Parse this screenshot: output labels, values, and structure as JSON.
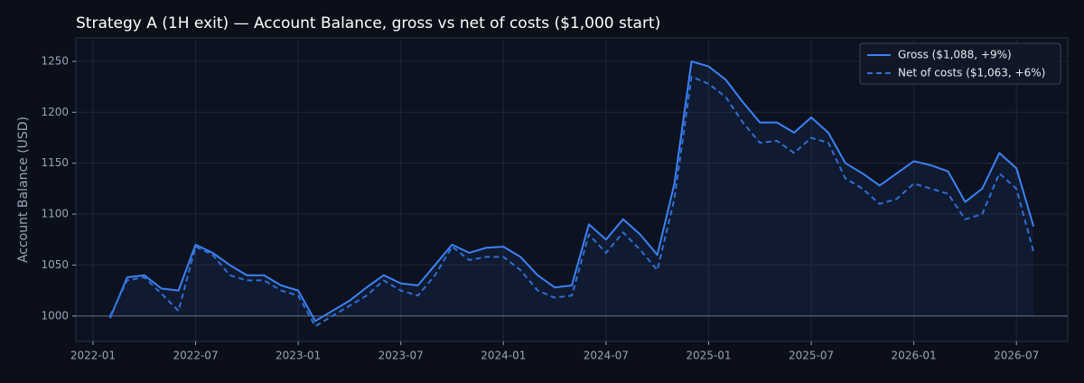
{
  "chart_data": {
    "type": "line",
    "title": "Strategy A (1H exit) — Account Balance, gross vs net of costs ($1,000 start)",
    "y_label": "Account Balance (USD)",
    "x": [
      "2022-02",
      "2022-03",
      "2022-04",
      "2022-05",
      "2022-06",
      "2022-07",
      "2022-08",
      "2022-09",
      "2022-10",
      "2022-11",
      "2022-12",
      "2023-01",
      "2023-02",
      "2023-03",
      "2023-04",
      "2023-05",
      "2023-06",
      "2023-07",
      "2023-08",
      "2023-09",
      "2023-10",
      "2023-11",
      "2023-12",
      "2024-01",
      "2024-02",
      "2024-03",
      "2024-04",
      "2024-05",
      "2024-06",
      "2024-07",
      "2024-08",
      "2024-09",
      "2024-10",
      "2024-11",
      "2024-12",
      "2025-01",
      "2025-02",
      "2025-03",
      "2025-04",
      "2025-05",
      "2025-06",
      "2025-07",
      "2025-08",
      "2025-09",
      "2025-10",
      "2025-11",
      "2025-12",
      "2026-01",
      "2026-02",
      "2026-03",
      "2026-04",
      "2026-05",
      "2026-06",
      "2026-07",
      "2026-08"
    ],
    "series": [
      {
        "name": "Gross ($1,088, +9%)",
        "color": "#3b82f6",
        "dashed": false,
        "values": [
          998,
          1038,
          1040,
          1027,
          1025,
          1070,
          1062,
          1050,
          1040,
          1040,
          1030,
          1025,
          995,
          1005,
          1015,
          1028,
          1040,
          1032,
          1030,
          1050,
          1070,
          1062,
          1067,
          1068,
          1058,
          1040,
          1028,
          1030,
          1090,
          1075,
          1095,
          1080,
          1060,
          1130,
          1250,
          1245,
          1232,
          1210,
          1190,
          1190,
          1180,
          1195,
          1180,
          1150,
          1140,
          1128,
          1140,
          1152,
          1148,
          1142,
          1112,
          1125,
          1160,
          1145,
          1088
        ]
      },
      {
        "name": "Net of costs ($1,063, +6%)",
        "color": "#2f6fd6",
        "dashed": true,
        "values": [
          1000,
          1035,
          1038,
          1022,
          1005,
          1068,
          1060,
          1040,
          1035,
          1035,
          1025,
          1020,
          990,
          1000,
          1010,
          1020,
          1035,
          1025,
          1020,
          1040,
          1068,
          1055,
          1058,
          1058,
          1045,
          1025,
          1018,
          1020,
          1080,
          1062,
          1082,
          1065,
          1045,
          1115,
          1235,
          1228,
          1215,
          1190,
          1170,
          1172,
          1160,
          1175,
          1170,
          1135,
          1125,
          1110,
          1115,
          1130,
          1125,
          1120,
          1095,
          1100,
          1140,
          1125,
          1063
        ]
      }
    ],
    "baseline": 1000,
    "xlim": [
      "2021-12",
      "2026-10"
    ],
    "xticks": [
      "2022-01",
      "2022-07",
      "2023-01",
      "2023-07",
      "2024-01",
      "2024-07",
      "2025-01",
      "2025-07",
      "2026-01",
      "2026-07"
    ],
    "ylim": [
      975,
      1273
    ],
    "yticks": [
      1000,
      1050,
      1100,
      1150,
      1200,
      1250
    ],
    "grid": true,
    "legend": "upper right"
  }
}
